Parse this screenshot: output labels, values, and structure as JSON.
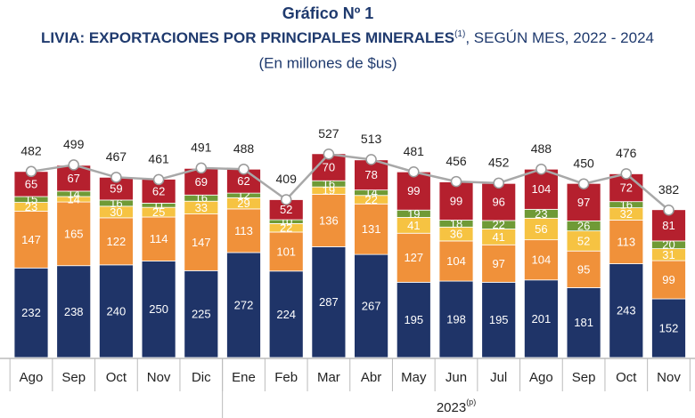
{
  "chart_data": {
    "type": "stacked-bar",
    "title": "Gráfico Nº 1",
    "subtitle": {
      "text": "LIVIA: EXPORTACIONES POR PRINCIPALES MINERALES",
      "note": "(1)",
      "rest": ", SEGÚN MES, 2022 - 2024"
    },
    "unit": "(En millones de $us)",
    "categories": [
      "Ago",
      "Sep",
      "Oct",
      "Nov",
      "Dic",
      "Ene",
      "Feb",
      "Mar",
      "Abr",
      "May",
      "Jun",
      "Jul",
      "Ago",
      "Sep",
      "Oct",
      "Nov"
    ],
    "group": {
      "label": "2023",
      "note": "(p)",
      "start": 5
    },
    "series": [
      {
        "color": "#1f3468",
        "values": [
          232,
          238,
          240,
          250,
          225,
          272,
          224,
          287,
          267,
          195,
          198,
          195,
          201,
          181,
          243,
          152
        ]
      },
      {
        "color": "#f0913a",
        "values": [
          147,
          165,
          122,
          114,
          147,
          113,
          101,
          136,
          131,
          127,
          104,
          97,
          104,
          95,
          113,
          99
        ]
      },
      {
        "color": "#f6c342",
        "values": [
          23,
          14,
          30,
          25,
          33,
          29,
          22,
          19,
          22,
          41,
          36,
          41,
          56,
          52,
          32,
          31
        ]
      },
      {
        "color": "#6f9a36",
        "values": [
          15,
          14,
          16,
          11,
          16,
          12,
          10,
          16,
          14,
          19,
          18,
          22,
          23,
          26,
          16,
          20
        ]
      },
      {
        "color": "#b5202e",
        "values": [
          65,
          67,
          59,
          62,
          69,
          62,
          52,
          70,
          78,
          99,
          99,
          96,
          104,
          97,
          72,
          81
        ]
      }
    ],
    "totals": {
      "color": "#a8a8a8",
      "values": [
        482,
        499,
        467,
        461,
        491,
        488,
        409,
        527,
        513,
        481,
        456,
        452,
        488,
        450,
        476,
        382
      ]
    }
  }
}
